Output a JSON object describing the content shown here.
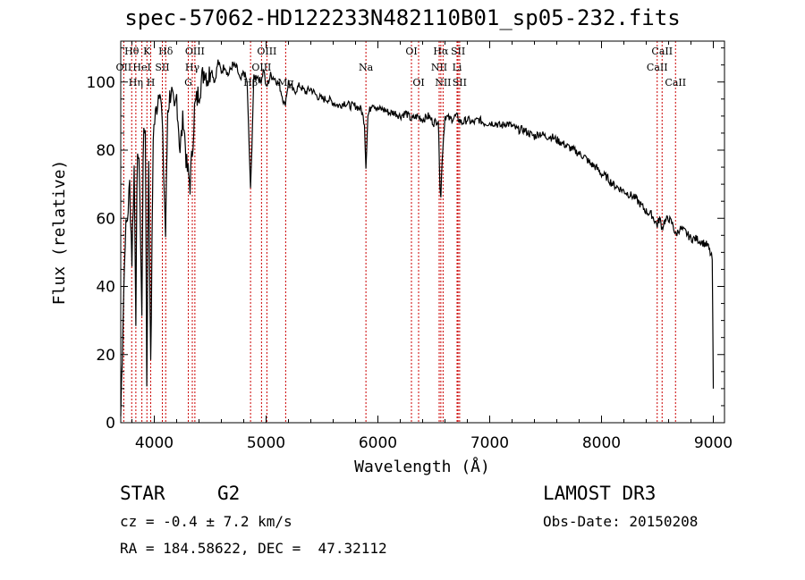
{
  "chart_data": {
    "type": "line",
    "title": "spec-57062-HD122233N482110B01_sp05-232.fits",
    "xlabel": "Wavelength (Å)",
    "ylabel": "Flux (relative)",
    "xlim": [
      3700,
      9100
    ],
    "ylim": [
      0,
      112
    ],
    "xticks": [
      4000,
      5000,
      6000,
      7000,
      8000,
      9000
    ],
    "yticks": [
      0,
      20,
      40,
      60,
      80,
      100
    ],
    "grid": false,
    "series": [
      {
        "name": "spectrum",
        "points": [
          [
            3700,
            2
          ],
          [
            3720,
            30
          ],
          [
            3740,
            55
          ],
          [
            3760,
            60
          ],
          [
            3780,
            70
          ],
          [
            3800,
            48
          ],
          [
            3820,
            75
          ],
          [
            3835,
            32
          ],
          [
            3850,
            82
          ],
          [
            3870,
            70
          ],
          [
            3889,
            30
          ],
          [
            3900,
            80
          ],
          [
            3920,
            88
          ],
          [
            3933,
            12
          ],
          [
            3950,
            78
          ],
          [
            3968,
            15
          ],
          [
            3990,
            85
          ],
          [
            4010,
            90
          ],
          [
            4030,
            95
          ],
          [
            4050,
            100
          ],
          [
            4070,
            88
          ],
          [
            4101,
            55
          ],
          [
            4120,
            92
          ],
          [
            4150,
            98
          ],
          [
            4180,
            90
          ],
          [
            4200,
            96
          ],
          [
            4230,
            80
          ],
          [
            4260,
            90
          ],
          [
            4290,
            75
          ],
          [
            4320,
            70
          ],
          [
            4340,
            80
          ],
          [
            4360,
            92
          ],
          [
            4390,
            96
          ],
          [
            4420,
            100
          ],
          [
            4450,
            104
          ],
          [
            4480,
            101
          ],
          [
            4510,
            104
          ],
          [
            4540,
            100
          ],
          [
            4570,
            106
          ],
          [
            4600,
            103
          ],
          [
            4630,
            105
          ],
          [
            4660,
            102
          ],
          [
            4700,
            105
          ],
          [
            4740,
            104
          ],
          [
            4770,
            100
          ],
          [
            4800,
            103
          ],
          [
            4830,
            100
          ],
          [
            4861,
            68
          ],
          [
            4890,
            101
          ],
          [
            4920,
            102
          ],
          [
            4950,
            100
          ],
          [
            4980,
            104
          ],
          [
            5000,
            98
          ],
          [
            5040,
            102
          ],
          [
            5080,
            101
          ],
          [
            5120,
            99
          ],
          [
            5167,
            93
          ],
          [
            5200,
            100
          ],
          [
            5250,
            97
          ],
          [
            5300,
            99
          ],
          [
            5350,
            97
          ],
          [
            5400,
            98
          ],
          [
            5450,
            96
          ],
          [
            5500,
            95
          ],
          [
            5550,
            95
          ],
          [
            5600,
            94
          ],
          [
            5650,
            93
          ],
          [
            5700,
            94
          ],
          [
            5750,
            93
          ],
          [
            5800,
            93
          ],
          [
            5850,
            92
          ],
          [
            5880,
            88
          ],
          [
            5893,
            75
          ],
          [
            5910,
            90
          ],
          [
            5950,
            94
          ],
          [
            6000,
            92
          ],
          [
            6050,
            92
          ],
          [
            6100,
            91
          ],
          [
            6150,
            91
          ],
          [
            6200,
            90
          ],
          [
            6250,
            91
          ],
          [
            6300,
            89
          ],
          [
            6350,
            90
          ],
          [
            6400,
            89
          ],
          [
            6450,
            90
          ],
          [
            6500,
            88
          ],
          [
            6540,
            89
          ],
          [
            6555,
            70
          ],
          [
            6563,
            66
          ],
          [
            6575,
            78
          ],
          [
            6600,
            90
          ],
          [
            6650,
            89
          ],
          [
            6700,
            90
          ],
          [
            6750,
            88
          ],
          [
            6800,
            89
          ],
          [
            6850,
            88
          ],
          [
            6900,
            89
          ],
          [
            6950,
            88
          ],
          [
            7000,
            88
          ],
          [
            7050,
            88
          ],
          [
            7100,
            87
          ],
          [
            7150,
            88
          ],
          [
            7200,
            87
          ],
          [
            7250,
            86
          ],
          [
            7300,
            86
          ],
          [
            7350,
            85
          ],
          [
            7400,
            84
          ],
          [
            7450,
            85
          ],
          [
            7500,
            84
          ],
          [
            7550,
            84
          ],
          [
            7600,
            83
          ],
          [
            7650,
            82
          ],
          [
            7700,
            81
          ],
          [
            7750,
            80
          ],
          [
            7800,
            79
          ],
          [
            7850,
            78
          ],
          [
            7900,
            76
          ],
          [
            7950,
            75
          ],
          [
            8000,
            73
          ],
          [
            8050,
            72
          ],
          [
            8100,
            70
          ],
          [
            8150,
            69
          ],
          [
            8200,
            68
          ],
          [
            8250,
            67
          ],
          [
            8300,
            66
          ],
          [
            8350,
            64
          ],
          [
            8400,
            62
          ],
          [
            8450,
            61
          ],
          [
            8498,
            58
          ],
          [
            8520,
            60
          ],
          [
            8542,
            57
          ],
          [
            8560,
            59
          ],
          [
            8600,
            60
          ],
          [
            8640,
            58
          ],
          [
            8662,
            55
          ],
          [
            8700,
            57
          ],
          [
            8750,
            56
          ],
          [
            8800,
            54
          ],
          [
            8850,
            54
          ],
          [
            8900,
            53
          ],
          [
            8950,
            52
          ],
          [
            8990,
            48
          ],
          [
            9000,
            10
          ]
        ]
      }
    ],
    "line_labels": [
      {
        "label": "Hθ",
        "wavelength": 3798,
        "row": 0
      },
      {
        "label": "K",
        "wavelength": 3934,
        "row": 0
      },
      {
        "label": "Hδ",
        "wavelength": 4102,
        "row": 0
      },
      {
        "label": "OIII",
        "wavelength": 4363,
        "row": 0
      },
      {
        "label": "OIII",
        "wavelength": 5007,
        "row": 0
      },
      {
        "label": "OI",
        "wavelength": 6300,
        "row": 0
      },
      {
        "label": "Hα",
        "wavelength": 6563,
        "row": 0
      },
      {
        "label": "SII",
        "wavelength": 6717,
        "row": 0
      },
      {
        "label": "CaII",
        "wavelength": 8542,
        "row": 0
      },
      {
        "label": "OII",
        "wavelength": 3727,
        "row": 1
      },
      {
        "label": "HeI",
        "wavelength": 3889,
        "row": 1
      },
      {
        "label": "SII",
        "wavelength": 4072,
        "row": 1
      },
      {
        "label": "Hγ",
        "wavelength": 4340,
        "row": 1
      },
      {
        "label": "OIII",
        "wavelength": 4959,
        "row": 1
      },
      {
        "label": "Na",
        "wavelength": 5893,
        "row": 1
      },
      {
        "label": "NII",
        "wavelength": 6548,
        "row": 1
      },
      {
        "label": "Li",
        "wavelength": 6708,
        "row": 1
      },
      {
        "label": "CaII",
        "wavelength": 8498,
        "row": 1
      },
      {
        "label": "Hη",
        "wavelength": 3835,
        "row": 2
      },
      {
        "label": "H",
        "wavelength": 3968,
        "row": 2
      },
      {
        "label": "G",
        "wavelength": 4304,
        "row": 2
      },
      {
        "label": "Hβ",
        "wavelength": 4861,
        "row": 2
      },
      {
        "label": "Mg",
        "wavelength": 5175,
        "row": 2
      },
      {
        "label": "OI",
        "wavelength": 6364,
        "row": 2
      },
      {
        "label": "NII",
        "wavelength": 6583,
        "row": 2
      },
      {
        "label": "SII",
        "wavelength": 6731,
        "row": 2
      },
      {
        "label": "CaII",
        "wavelength": 8662,
        "row": 2
      }
    ],
    "line_marker_color": "#cc0000"
  },
  "info": {
    "object_type": "STAR",
    "subclass": "G2",
    "survey": "LAMOST DR3",
    "cz": "cz = -0.4 ± 7.2 km/s",
    "obs_date": "Obs-Date: 20150208",
    "coords": "RA = 184.58622, DEC =  47.32112"
  }
}
